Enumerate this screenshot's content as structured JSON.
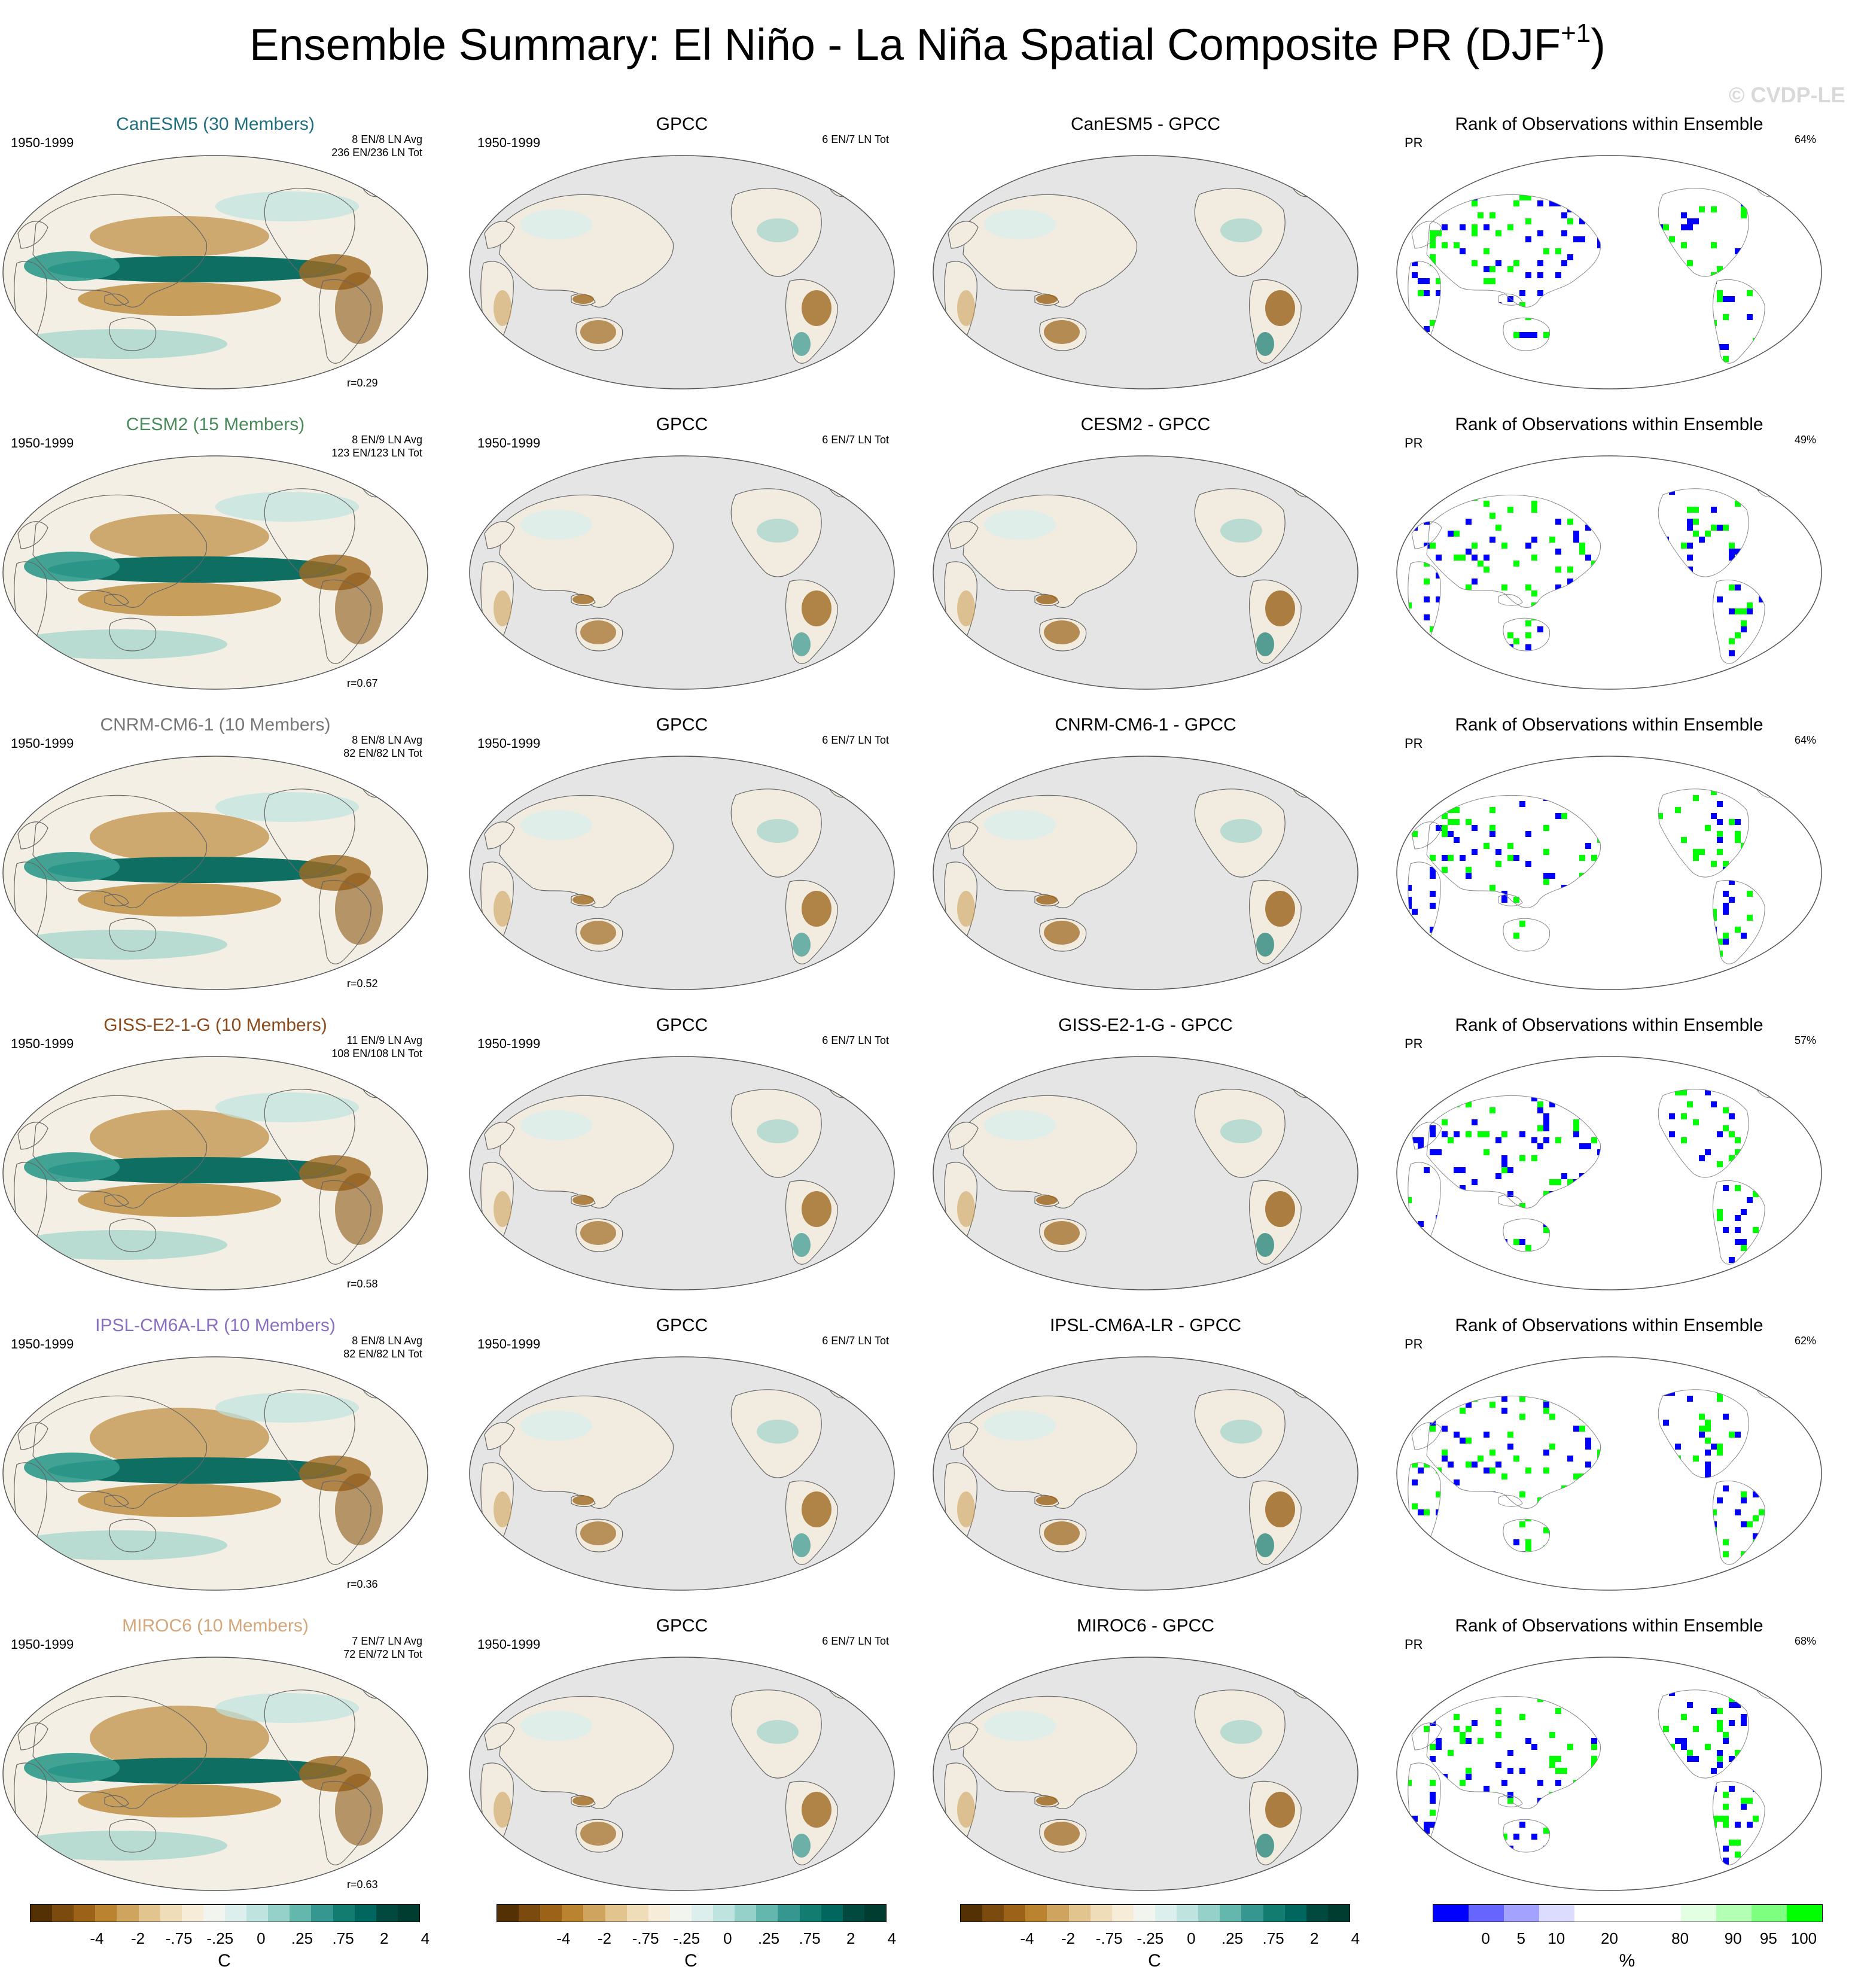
{
  "figure": {
    "title": "Ensemble Summary: El Niño - La Niña Spatial Composite PR (DJF",
    "title_sup": "+1",
    "title_end": ")",
    "watermark": "© CVDP-LE"
  },
  "colors": {
    "ocean": "#e5e5e5",
    "coast": "#666666",
    "rank_low": "#0000ff",
    "rank_high": "#00ff00"
  },
  "rows": [
    {
      "model": "CanESM5 (30 Members)",
      "model_color": "#1f6f7f",
      "period": "1950-1999",
      "avg": "8 EN/8 LN Avg",
      "tot": "236 EN/236 LN Tot",
      "corr": "r=0.29",
      "obs_title": "GPCC",
      "obs_period": "1950-1999",
      "obs_tot": "6 EN/7 LN Tot",
      "diff_title": "CanESM5 - GPCC",
      "rank_title": "Rank of Observations within Ensemble",
      "rank_var": "PR",
      "rank_pct": "64%"
    },
    {
      "model": "CESM2 (15 Members)",
      "model_color": "#4a8a5a",
      "period": "1950-1999",
      "avg": "8 EN/9 LN Avg",
      "tot": "123 EN/123 LN Tot",
      "corr": "r=0.67",
      "obs_title": "GPCC",
      "obs_period": "1950-1999",
      "obs_tot": "6 EN/7 LN Tot",
      "diff_title": "CESM2 - GPCC",
      "rank_title": "Rank of Observations within Ensemble",
      "rank_var": "PR",
      "rank_pct": "49%"
    },
    {
      "model": "CNRM-CM6-1 (10 Members)",
      "model_color": "#777777",
      "period": "1950-1999",
      "avg": "8 EN/8 LN Avg",
      "tot": "82 EN/82 LN Tot",
      "corr": "r=0.52",
      "obs_title": "GPCC",
      "obs_period": "1950-1999",
      "obs_tot": "6 EN/7 LN Tot",
      "diff_title": "CNRM-CM6-1 - GPCC",
      "rank_title": "Rank of Observations within Ensemble",
      "rank_var": "PR",
      "rank_pct": "64%"
    },
    {
      "model": "GISS-E2-1-G (10 Members)",
      "model_color": "#8b4a1c",
      "period": "1950-1999",
      "avg": "11 EN/9 LN Avg",
      "tot": "108 EN/108 LN Tot",
      "corr": "r=0.58",
      "obs_title": "GPCC",
      "obs_period": "1950-1999",
      "obs_tot": "6 EN/7 LN Tot",
      "diff_title": "GISS-E2-1-G - GPCC",
      "rank_title": "Rank of Observations within Ensemble",
      "rank_var": "PR",
      "rank_pct": "57%"
    },
    {
      "model": "IPSL-CM6A-LR (10 Members)",
      "model_color": "#8a6fc0",
      "period": "1950-1999",
      "avg": "8 EN/8 LN Avg",
      "tot": "82 EN/82 LN Tot",
      "corr": "r=0.36",
      "obs_title": "GPCC",
      "obs_period": "1950-1999",
      "obs_tot": "6 EN/7 LN Tot",
      "diff_title": "IPSL-CM6A-LR - GPCC",
      "rank_title": "Rank of Observations within Ensemble",
      "rank_var": "PR",
      "rank_pct": "62%"
    },
    {
      "model": "MIROC6 (10 Members)",
      "model_color": "#d4a77a",
      "period": "1950-1999",
      "avg": "7 EN/7 LN Avg",
      "tot": "72 EN/72 LN Tot",
      "corr": "r=0.63",
      "obs_title": "GPCC",
      "obs_period": "1950-1999",
      "obs_tot": "6 EN/7 LN Tot",
      "diff_title": "MIROC6 - GPCC",
      "rank_title": "Rank of Observations within Ensemble",
      "rank_var": "PR",
      "rank_pct": "68%"
    }
  ],
  "colorbars": [
    {
      "unit": "C",
      "colors": [
        "#543005",
        "#7a4a0e",
        "#9b6218",
        "#b98330",
        "#cfa45e",
        "#e2c48f",
        "#efdcb8",
        "#f6ecd8",
        "#f2f4ef",
        "#dcefec",
        "#bfe4df",
        "#95d1c8",
        "#63b7ac",
        "#35978f",
        "#137c70",
        "#01665e",
        "#01493f",
        "#003c30"
      ],
      "ticks": [
        "-4",
        "-2",
        "-.75",
        "-.25",
        "0",
        ".25",
        ".75",
        "2",
        "4"
      ]
    },
    {
      "unit": "C",
      "colors": [
        "#543005",
        "#7a4a0e",
        "#9b6218",
        "#b98330",
        "#cfa45e",
        "#e2c48f",
        "#efdcb8",
        "#f6ecd8",
        "#f2f4ef",
        "#dcefec",
        "#bfe4df",
        "#95d1c8",
        "#63b7ac",
        "#35978f",
        "#137c70",
        "#01665e",
        "#01493f",
        "#003c30"
      ],
      "ticks": [
        "-4",
        "-2",
        "-.75",
        "-.25",
        "0",
        ".25",
        ".75",
        "2",
        "4"
      ]
    },
    {
      "unit": "C",
      "colors": [
        "#543005",
        "#7a4a0e",
        "#9b6218",
        "#b98330",
        "#cfa45e",
        "#e2c48f",
        "#efdcb8",
        "#f6ecd8",
        "#f2f4ef",
        "#dcefec",
        "#bfe4df",
        "#95d1c8",
        "#63b7ac",
        "#35978f",
        "#137c70",
        "#01665e",
        "#01493f",
        "#003c30"
      ],
      "ticks": [
        "-4",
        "-2",
        "-.75",
        "-.25",
        "0",
        ".25",
        ".75",
        "2",
        "4"
      ]
    },
    {
      "unit": "%",
      "colors": [
        "#0000ff",
        "#6666ff",
        "#a3a3ff",
        "#dcdcff",
        "#ffffff",
        "#ffffff",
        "#ffffff",
        "#e3ffe3",
        "#b3ffb3",
        "#7fff7f",
        "#00ff00"
      ],
      "ticks": [
        "0",
        "5",
        "10",
        "20",
        "80",
        "90",
        "95",
        "100"
      ]
    }
  ]
}
